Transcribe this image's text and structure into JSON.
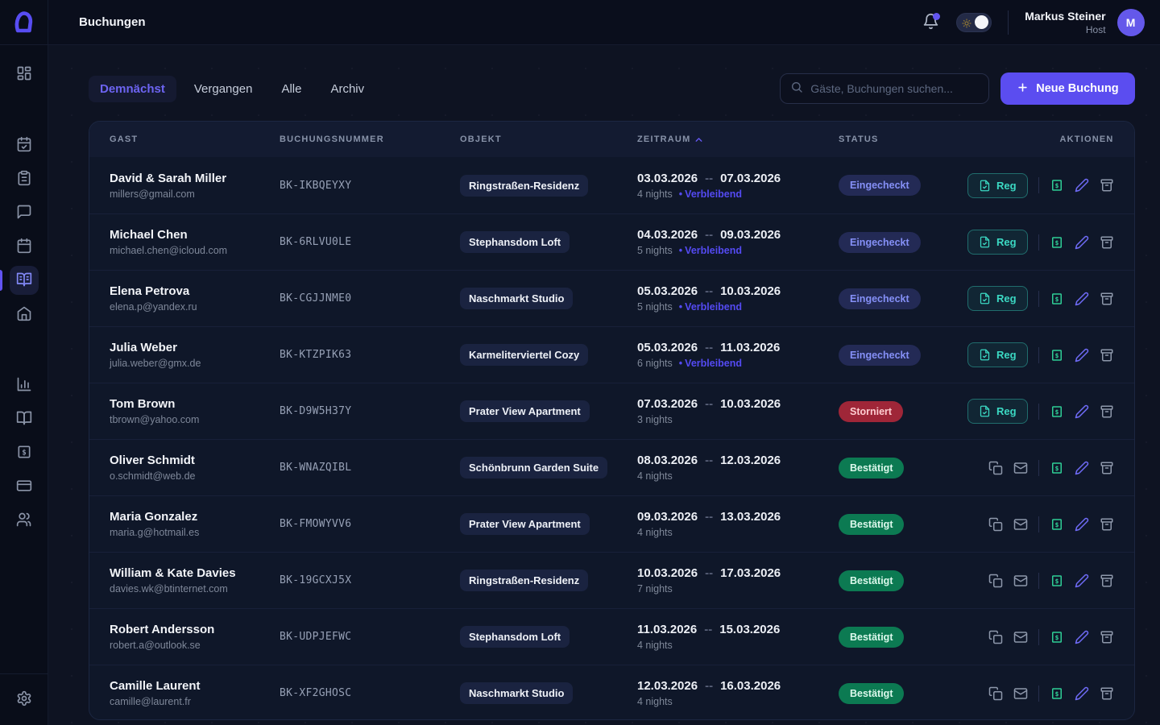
{
  "header": {
    "title": "Buchungen",
    "user_name": "Markus Steiner",
    "user_role": "Host",
    "avatar_initial": "M"
  },
  "tabs": [
    {
      "label": "Demnächst",
      "active": true
    },
    {
      "label": "Vergangen",
      "active": false
    },
    {
      "label": "Alle",
      "active": false
    },
    {
      "label": "Archiv",
      "active": false
    }
  ],
  "search": {
    "placeholder": "Gäste, Buchungen suchen..."
  },
  "toolbar": {
    "new_booking_label": "Neue Buchung"
  },
  "sidebar": {
    "items": [
      "dashboard",
      "calendar-check",
      "tasks-clipboard",
      "messages",
      "calendar",
      "bookings-book",
      "home",
      "analytics",
      "guidebook",
      "payments",
      "cards",
      "guests",
      "settings"
    ],
    "active_item": "bookings-book"
  },
  "table": {
    "columns": [
      "Gast",
      "Buchungsnummer",
      "Objekt",
      "Zeitraum",
      "Status",
      "Aktionen"
    ],
    "sort_column": "Zeitraum",
    "sort_direction": "asc",
    "reg_label": "Reg",
    "rows": [
      {
        "guest": "David & Sarah Miller",
        "email": "millers@gmail.com",
        "booking_no": "BK-IKBQEYXY",
        "object": "Ringstraßen-Residenz",
        "date_from": "03.03.2026",
        "date_to": "07.03.2026",
        "nights": "4 nights",
        "remaining": "Verbleibend",
        "status": "Eingecheckt",
        "action_set": "reg"
      },
      {
        "guest": "Michael Chen",
        "email": "michael.chen@icloud.com",
        "booking_no": "BK-6RLVU0LE",
        "object": "Stephansdom Loft",
        "date_from": "04.03.2026",
        "date_to": "09.03.2026",
        "nights": "5 nights",
        "remaining": "Verbleibend",
        "status": "Eingecheckt",
        "action_set": "reg"
      },
      {
        "guest": "Elena Petrova",
        "email": "elena.p@yandex.ru",
        "booking_no": "BK-CGJJNME0",
        "object": "Naschmarkt Studio",
        "date_from": "05.03.2026",
        "date_to": "10.03.2026",
        "nights": "5 nights",
        "remaining": "Verbleibend",
        "status": "Eingecheckt",
        "action_set": "reg"
      },
      {
        "guest": "Julia Weber",
        "email": "julia.weber@gmx.de",
        "booking_no": "BK-KTZPIK63",
        "object": "Karmeliterviertel Cozy",
        "date_from": "05.03.2026",
        "date_to": "11.03.2026",
        "nights": "6 nights",
        "remaining": "Verbleibend",
        "status": "Eingecheckt",
        "action_set": "reg"
      },
      {
        "guest": "Tom Brown",
        "email": "tbrown@yahoo.com",
        "booking_no": "BK-D9W5H37Y",
        "object": "Prater View Apartment",
        "date_from": "07.03.2026",
        "date_to": "10.03.2026",
        "nights": "3 nights",
        "remaining": null,
        "status": "Storniert",
        "action_set": "reg"
      },
      {
        "guest": "Oliver Schmidt",
        "email": "o.schmidt@web.de",
        "booking_no": "BK-WNAZQIBL",
        "object": "Schönbrunn Garden Suite",
        "date_from": "08.03.2026",
        "date_to": "12.03.2026",
        "nights": "4 nights",
        "remaining": null,
        "status": "Bestätigt",
        "action_set": "copy-mail"
      },
      {
        "guest": "Maria Gonzalez",
        "email": "maria.g@hotmail.es",
        "booking_no": "BK-FMOWYVV6",
        "object": "Prater View Apartment",
        "date_from": "09.03.2026",
        "date_to": "13.03.2026",
        "nights": "4 nights",
        "remaining": null,
        "status": "Bestätigt",
        "action_set": "copy-mail"
      },
      {
        "guest": "William & Kate Davies",
        "email": "davies.wk@btinternet.com",
        "booking_no": "BK-19GCXJ5X",
        "object": "Ringstraßen-Residenz",
        "date_from": "10.03.2026",
        "date_to": "17.03.2026",
        "nights": "7 nights",
        "remaining": null,
        "status": "Bestätigt",
        "action_set": "copy-mail"
      },
      {
        "guest": "Robert Andersson",
        "email": "robert.a@outlook.se",
        "booking_no": "BK-UDPJEFWC",
        "object": "Stephansdom Loft",
        "date_from": "11.03.2026",
        "date_to": "15.03.2026",
        "nights": "4 nights",
        "remaining": null,
        "status": "Bestätigt",
        "action_set": "copy-mail"
      },
      {
        "guest": "Camille Laurent",
        "email": "camille@laurent.fr",
        "booking_no": "BK-XF2GHOSC",
        "object": "Naschmarkt Studio",
        "date_from": "12.03.2026",
        "date_to": "16.03.2026",
        "nights": "4 nights",
        "remaining": null,
        "status": "Bestätigt",
        "action_set": "copy-mail"
      }
    ]
  },
  "status_styles": {
    "Eingecheckt": "badge-checkedin",
    "Storniert": "badge-cancelled",
    "Bestätigt": "badge-confirmed"
  },
  "colors": {
    "accent": "#5b4df0",
    "checkedin_text": "#8590f7",
    "cancelled_bg": "#9f2638",
    "confirmed_bg": "#0c7a52",
    "reg_teal": "#3bd9c3",
    "payment_green": "#2fce96"
  }
}
